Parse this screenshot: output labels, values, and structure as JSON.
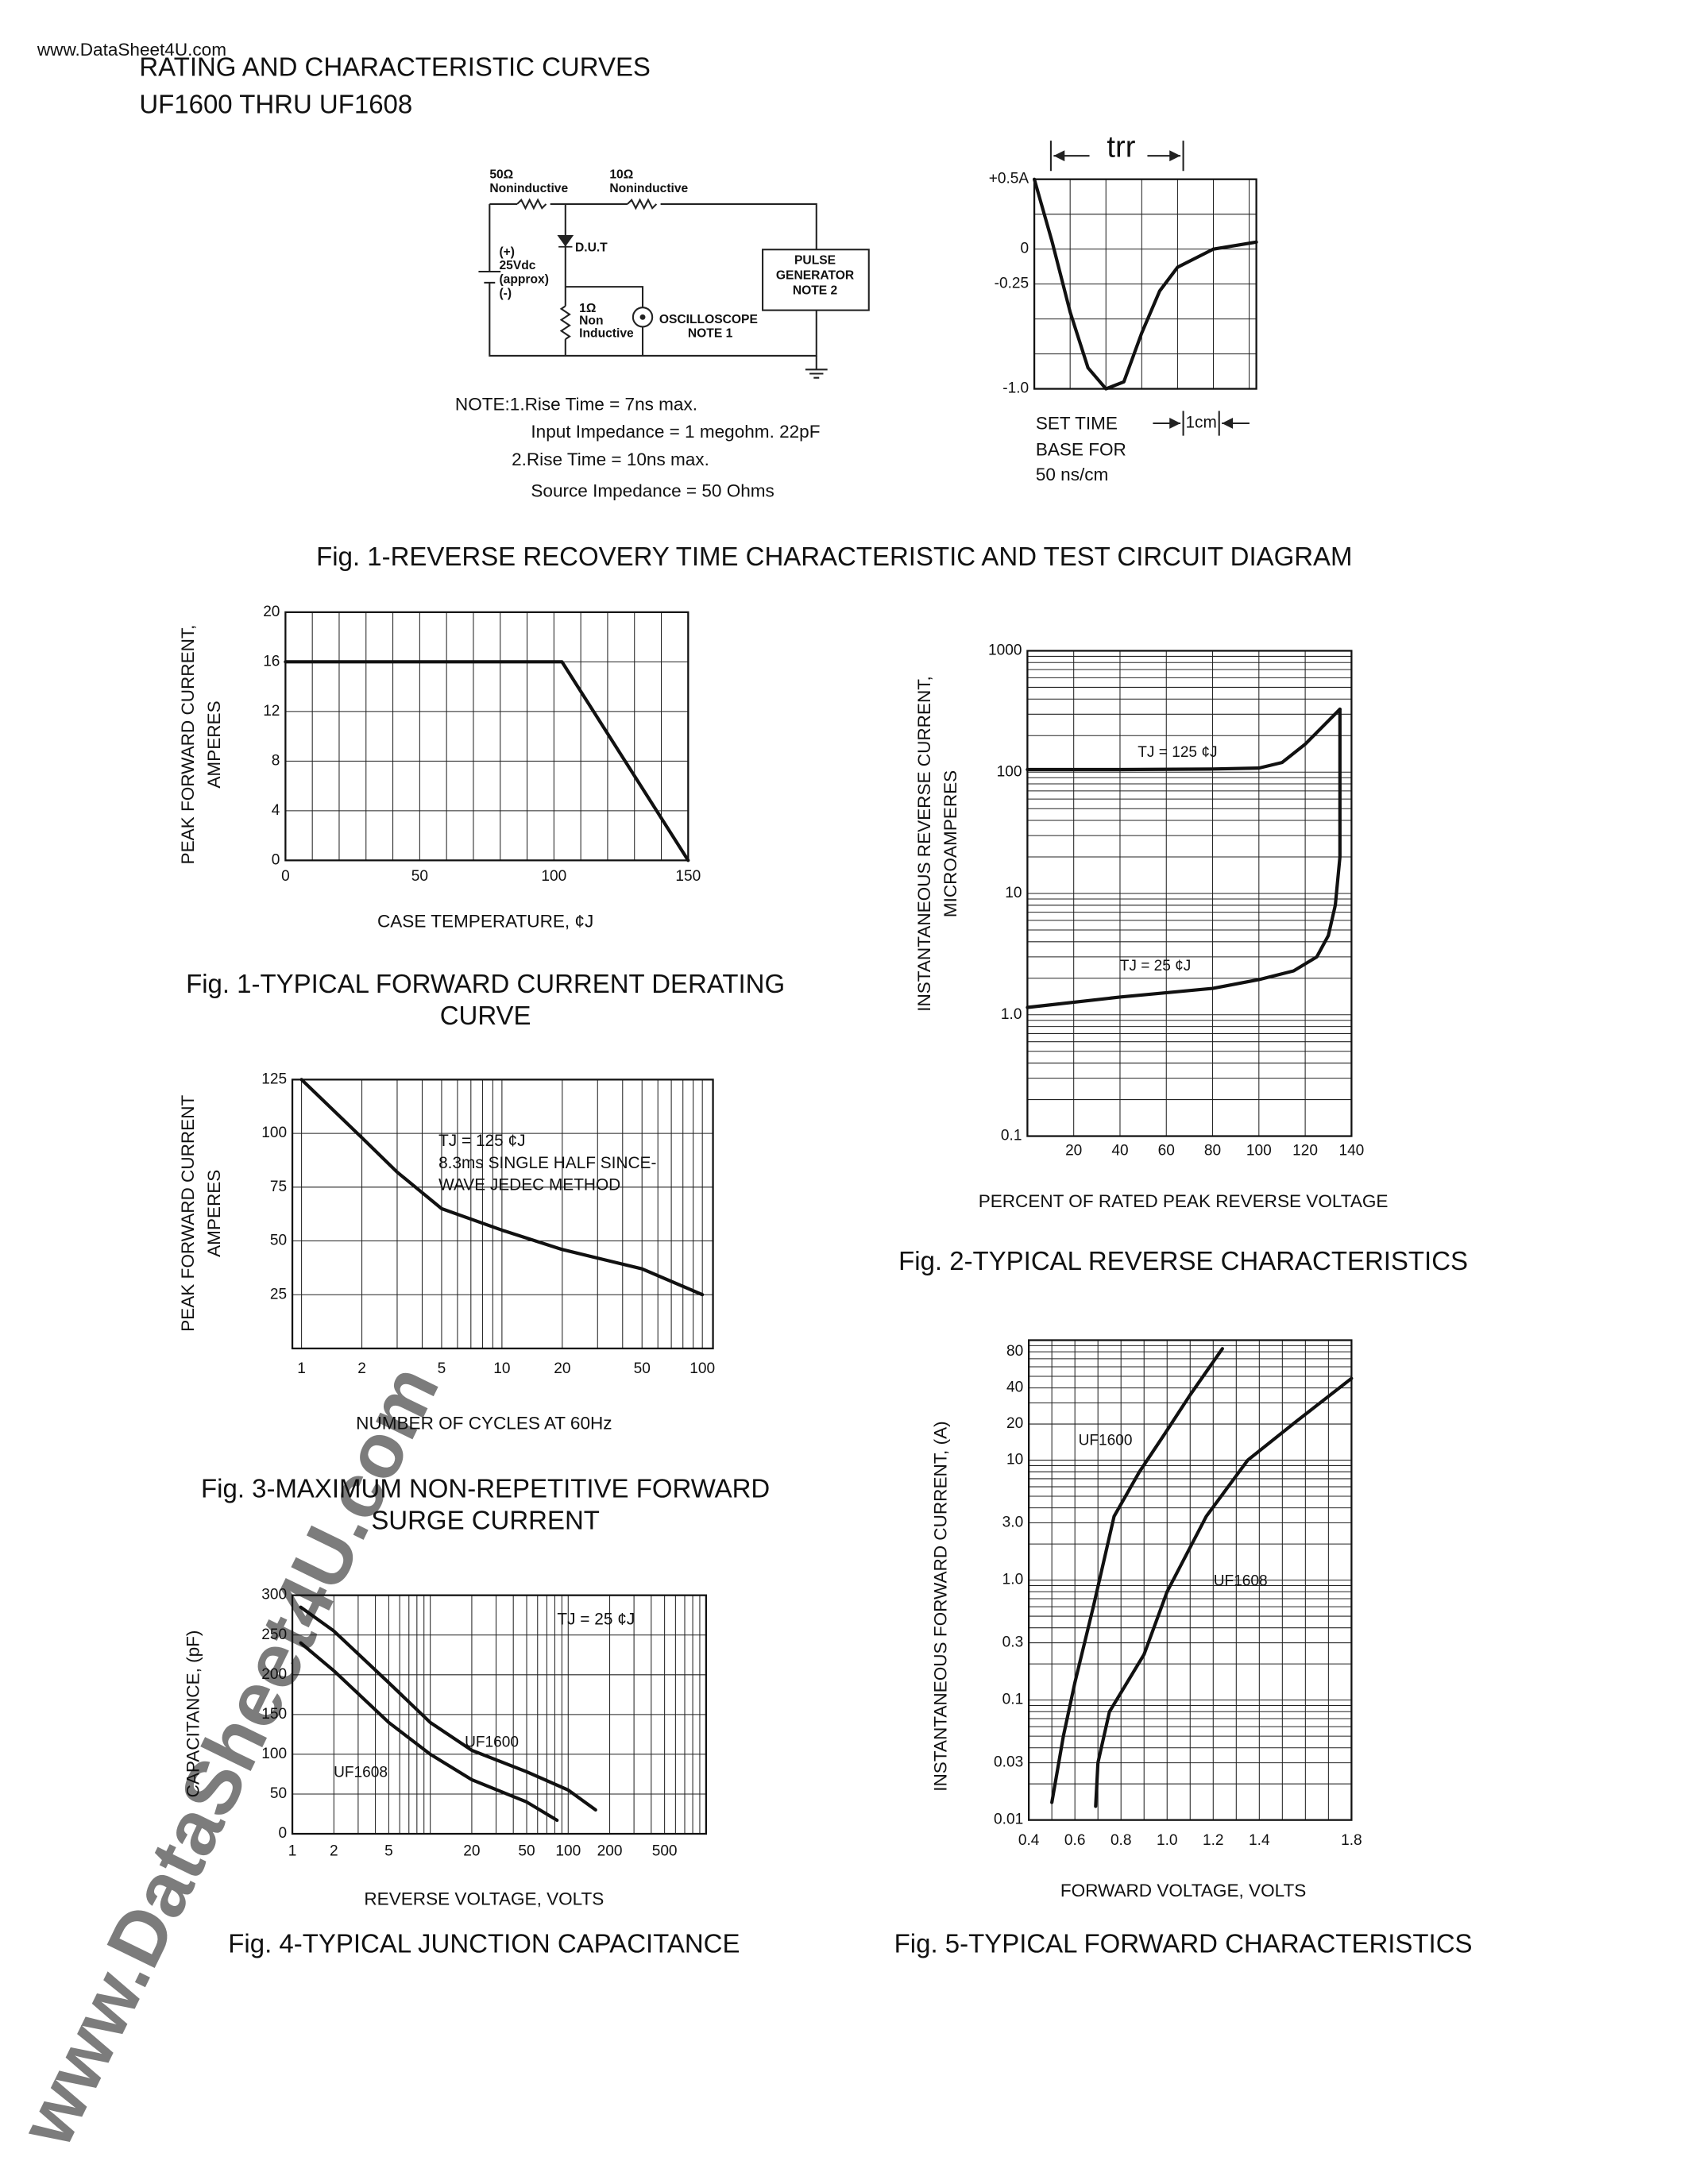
{
  "header": {
    "site": "www.DataSheet4U.com",
    "title": "RATING AND CHARACTERISTIC CURVES",
    "subtitle": "UF1600 THRU UF1608"
  },
  "watermark": "www.DataSheet4U.com",
  "fig1": {
    "circuit": {
      "r1": [
        "50Ω",
        "Noninductive"
      ],
      "r2": [
        "10Ω",
        "Noninductive"
      ],
      "dut": "D.U.T",
      "supply": [
        "(+)",
        "25Vdc",
        "(approx)",
        "(-)"
      ],
      "generator": [
        "PULSE",
        "GENERATOR",
        "NOTE 2"
      ],
      "r3": [
        "1Ω",
        "Non",
        "Inductive"
      ],
      "scope": [
        "OSCILLOSCOPE",
        "NOTE 1"
      ]
    },
    "notes": [
      "NOTE:1.Rise Time = 7ns max.",
      "Input Impedance = 1 megohm.    22pF",
      "2.Rise Time = 10ns max.",
      "Source Impedance = 50 Ohms"
    ],
    "caption": "Fig. 1-REVERSE RECOVERY TIME CHARACTERISTIC AND TEST CIRCUIT DIAGRAM"
  },
  "chart_data": [
    {
      "type": "line",
      "annotations": [
        "trr",
        "SET TIME",
        "BASE FOR",
        "50 ns/cm",
        "1cm"
      ],
      "xlim": [
        0,
        6.2
      ],
      "ylim": [
        -1,
        0.5
      ],
      "yticks": [
        {
          "value": 0.5,
          "label": "+0.5A"
        },
        0,
        -0.25,
        {
          "value": -1,
          "label": "-1.0"
        }
      ],
      "xgrid": [
        1,
        2,
        3,
        4,
        5,
        6
      ],
      "ygrid": [
        -0.75,
        -0.5,
        -0.25,
        0,
        0.25
      ],
      "series": [
        {
          "color": "#111111",
          "x": [
            0,
            0.5,
            1,
            1.5,
            2,
            2.5,
            3,
            3.5,
            4,
            5,
            6.2
          ],
          "values": [
            0.5,
            0.05,
            -0.45,
            -0.85,
            -1.0,
            -0.95,
            -0.6,
            -0.3,
            -0.13,
            0.0,
            0.05
          ]
        }
      ]
    },
    {
      "type": "line",
      "title": [
        "Fig. 1-TYPICAL FORWARD CURRENT DERATING",
        "CURVE"
      ],
      "xlabel": "CASE TEMPERATURE, ¢J",
      "ylabel": [
        "PEAK FORWARD CURRENT,",
        "AMPERES"
      ],
      "xlim": [
        0,
        150
      ],
      "ylim": [
        0,
        20
      ],
      "xticks": [
        0,
        50,
        100,
        150
      ],
      "yticks": [
        0,
        4,
        8,
        12,
        16,
        20
      ],
      "xgrid": [
        10,
        20,
        30,
        40,
        50,
        60,
        70,
        80,
        90,
        100,
        110,
        120,
        130,
        140
      ],
      "ygrid": [
        4,
        8,
        12,
        16
      ],
      "series": [
        {
          "color": "#111111",
          "x": [
            0,
            103,
            150
          ],
          "values": [
            16,
            16,
            0
          ]
        }
      ]
    },
    {
      "type": "line",
      "title": [
        "Fig. 3-MAXIMUM NON-REPETITIVE FORWARD",
        "SURGE CURRENT"
      ],
      "xlabel": "NUMBER OF CYCLES AT 60Hz",
      "ylabel": [
        "PEAK FORWARD CURRENT",
        "AMPERES"
      ],
      "annotations": [
        "TJ = 125  ¢J",
        "8.3ms SINGLE HALF SINCE-",
        "WAVE JEDEC METHOD"
      ],
      "xscale": "log",
      "xlim": [
        0.9,
        113
      ],
      "ylim": [
        0,
        125
      ],
      "xticks": [
        1,
        2,
        5,
        10,
        20,
        50,
        100
      ],
      "yticks": [
        25,
        50,
        75,
        100,
        125
      ],
      "xgrid": [
        1,
        2,
        3,
        4,
        5,
        6,
        7,
        8,
        9,
        10,
        20,
        30,
        40,
        50,
        60,
        70,
        80,
        90,
        100
      ],
      "ygrid": [
        25,
        50,
        75,
        100
      ],
      "series": [
        {
          "color": "#111111",
          "x": [
            1,
            2,
            3,
            5,
            10,
            20,
            50,
            100
          ],
          "values": [
            125,
            98,
            82,
            65,
            55,
            46,
            37,
            25
          ]
        }
      ]
    },
    {
      "type": "line",
      "title": [
        "Fig. 4-TYPICAL JUNCTION CAPACITANCE"
      ],
      "xlabel": "REVERSE VOLTAGE, VOLTS",
      "ylabel": [
        "CAPACITANCE, (pF)"
      ],
      "annotations": [
        "TJ = 25  ¢J"
      ],
      "xscale": "log",
      "xlim": [
        1,
        1000
      ],
      "ylim": [
        0,
        300
      ],
      "xticks": [
        1,
        2,
        5,
        20,
        50,
        100,
        200,
        500
      ],
      "yticks": [
        0,
        50,
        100,
        150,
        200,
        250,
        300
      ],
      "xgrid": [
        2,
        3,
        4,
        5,
        6,
        7,
        8,
        9,
        10,
        20,
        30,
        40,
        50,
        60,
        70,
        80,
        90,
        100,
        200,
        300,
        400,
        500,
        600,
        700,
        800,
        900
      ],
      "ygrid": [
        50,
        100,
        150,
        200,
        250
      ],
      "series": [
        {
          "name": "UF1600",
          "color": "#111111",
          "x": [
            1.15,
            2,
            5,
            10,
            20,
            50,
            100,
            158
          ],
          "values": [
            285,
            255,
            190,
            140,
            105,
            78,
            55,
            30
          ]
        },
        {
          "name": "UF1608",
          "color": "#111111",
          "x": [
            1.15,
            2,
            5,
            10,
            20,
            50,
            83
          ],
          "values": [
            240,
            205,
            140,
            100,
            68,
            40,
            17
          ]
        }
      ]
    },
    {
      "type": "line",
      "title": [
        "Fig. 2-TYPICAL REVERSE CHARACTERISTICS"
      ],
      "xlabel": "PERCENT OF RATED PEAK REVERSE VOLTAGE",
      "ylabel": [
        "INSTANTANEOUS REVERSE CURRENT,",
        "MICROAMPERES"
      ],
      "yscale": "log",
      "xlim": [
        0,
        140
      ],
      "ylim": [
        0.1,
        1000
      ],
      "xticks": [
        20,
        40,
        60,
        80,
        100,
        120,
        140
      ],
      "yticks": [
        1000,
        100,
        10,
        {
          "value": 1,
          "label": "1.0"
        },
        0.1
      ],
      "xgrid": [
        20,
        40,
        60,
        80,
        100,
        120
      ],
      "ygrid": [
        0.2,
        0.3,
        0.4,
        0.5,
        0.6,
        0.7,
        0.8,
        0.9,
        1,
        2,
        3,
        4,
        5,
        6,
        7,
        8,
        9,
        10,
        20,
        30,
        40,
        50,
        60,
        70,
        80,
        90,
        100,
        200,
        300,
        400,
        500,
        600,
        700,
        800,
        900
      ],
      "series": [
        {
          "name": "TJ = 125 ¢J",
          "color": "#111111",
          "x": [
            0,
            40,
            80,
            100,
            110,
            120,
            135
          ],
          "values": [
            105,
            105,
            106,
            108,
            120,
            170,
            330
          ]
        },
        {
          "name": "TJ = 25 ¢J",
          "color": "#111111",
          "x": [
            0,
            40,
            80,
            100,
            115,
            125,
            130,
            133,
            135,
            135
          ],
          "values": [
            1.15,
            1.4,
            1.65,
            1.95,
            2.3,
            3.0,
            4.5,
            8,
            20,
            330
          ]
        }
      ]
    },
    {
      "type": "line",
      "title": [
        "Fig. 5-TYPICAL FORWARD CHARACTERISTICS"
      ],
      "xlabel": "FORWARD VOLTAGE, VOLTS",
      "ylabel": [
        "INSTANTANEOUS FORWARD CURRENT, (A)"
      ],
      "yscale": "log",
      "xlim": [
        0.4,
        1.8
      ],
      "ylim": [
        0.01,
        100
      ],
      "xticks": [
        0.4,
        0.6,
        0.8,
        {
          "value": 1,
          "label": "1.0"
        },
        1.2,
        1.4,
        1.8
      ],
      "yticks": [
        80,
        40,
        20,
        10,
        {
          "value": 3,
          "label": "3.0"
        },
        {
          "value": 1,
          "label": "1.0"
        },
        0.3,
        0.1,
        0.03,
        0.01
      ],
      "xgrid": [
        0.5,
        0.6,
        0.7,
        0.8,
        0.9,
        1.0,
        1.1,
        1.2,
        1.3,
        1.4,
        1.5,
        1.6,
        1.7
      ],
      "ygrid": [
        0.02,
        0.03,
        0.04,
        0.05,
        0.06,
        0.07,
        0.08,
        0.09,
        0.1,
        0.2,
        0.3,
        0.4,
        0.5,
        0.6,
        0.7,
        0.8,
        0.9,
        1,
        2,
        3,
        4,
        5,
        6,
        7,
        8,
        9,
        10,
        20,
        30,
        40,
        50,
        60,
        70,
        80,
        90
      ],
      "series": [
        {
          "name": "UF1600",
          "color": "#111111",
          "x": [
            0.5,
            0.55,
            0.6,
            0.68,
            0.77,
            0.88,
            0.99,
            1.1,
            1.24
          ],
          "values": [
            0.014,
            0.05,
            0.14,
            0.6,
            3.4,
            8,
            16.6,
            35,
            85
          ]
        },
        {
          "name": "UF1608",
          "color": "#111111",
          "x": [
            0.69,
            0.7,
            0.75,
            0.9,
            1.0,
            1.17,
            1.35,
            1.56,
            1.8
          ],
          "values": [
            0.013,
            0.03,
            0.08,
            0.24,
            0.8,
            3.4,
            10,
            21,
            48
          ]
        }
      ]
    }
  ]
}
